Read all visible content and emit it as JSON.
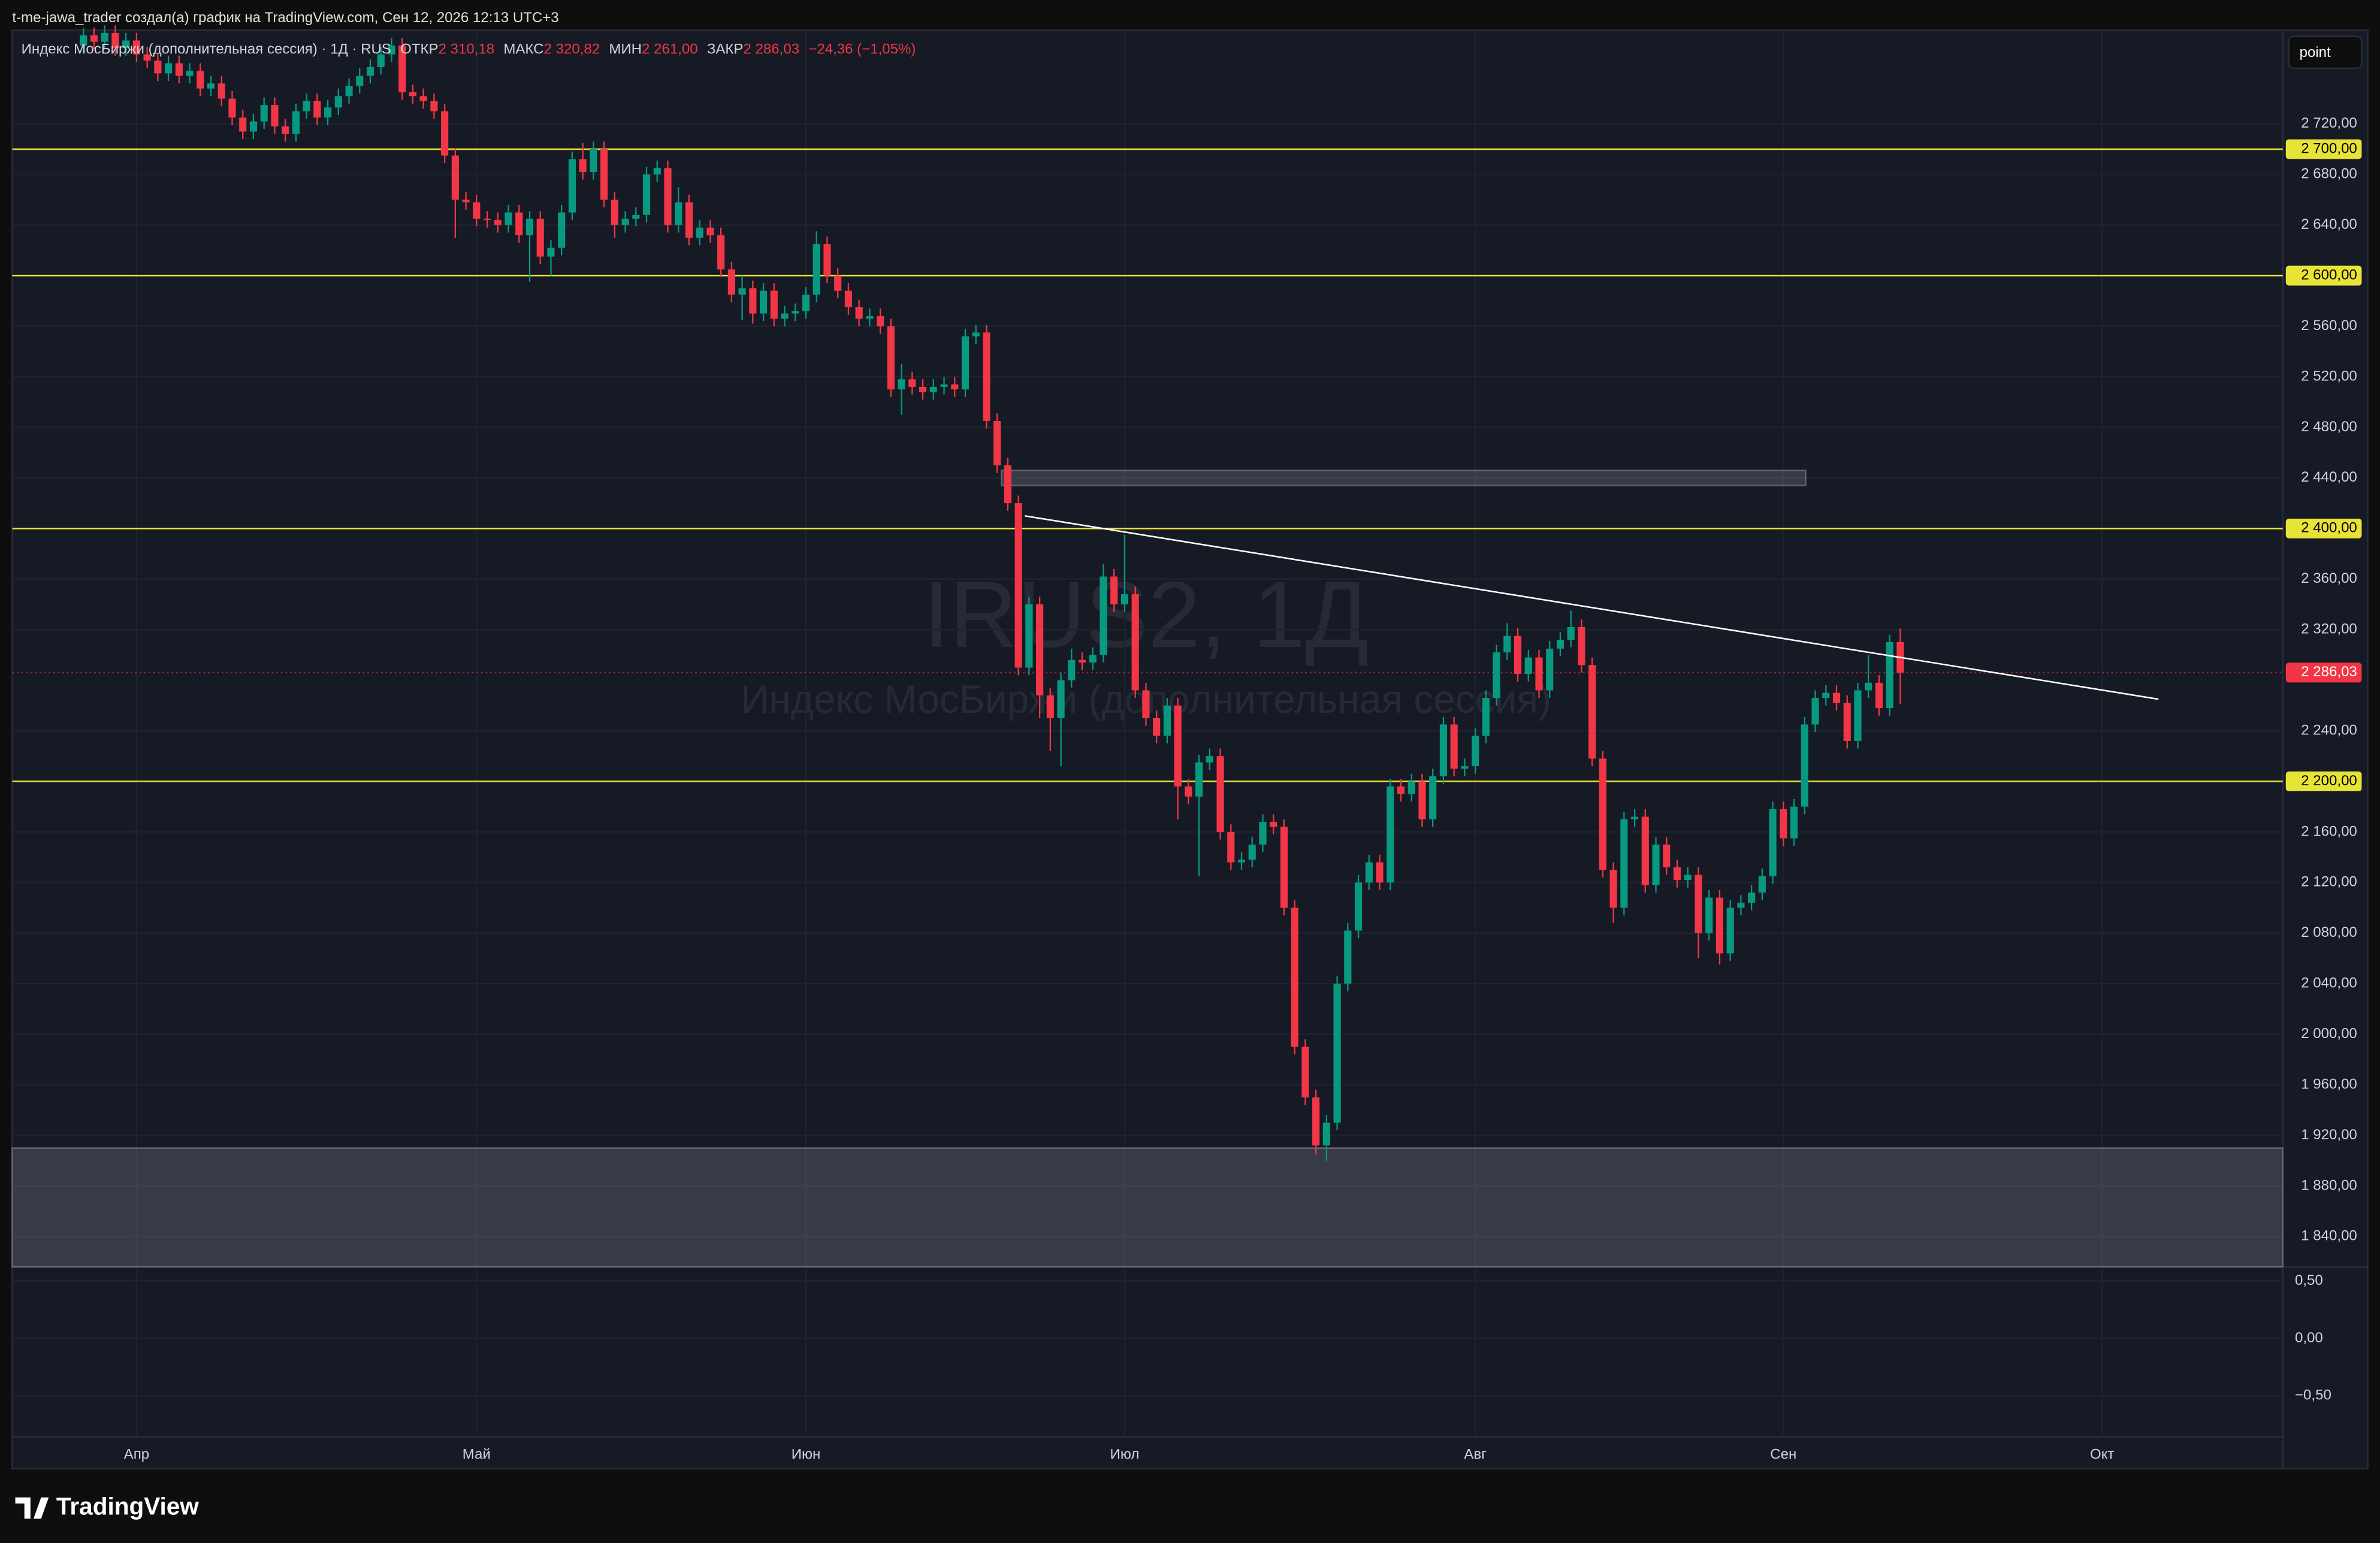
{
  "header": {
    "caption": "t-me-jawa_trader создал(а) график на TradingView.com, Сен 12, 2026 12:13 UTC+3"
  },
  "legend": {
    "symbol": "Индекс МосБиржи (дополнительная сессия) · 1Д · RUS",
    "open_label": "ОТКР",
    "open": "2 310,18",
    "high_label": "МАКС",
    "high": "2 320,82",
    "low_label": "МИН",
    "low": "2 261,00",
    "close_label": "ЗАКР",
    "close": "2 286,03",
    "change": "−24,36 (−1,05%)"
  },
  "watermark": {
    "symbol": "IRUS2, 1Д",
    "name": "Индекс МосБиржи (дополнительная сессия)"
  },
  "toolbar": {
    "button": "point"
  },
  "footer": {
    "logo": "TradingView"
  },
  "chart_data": [
    {
      "type": "candlestick",
      "categories": [
        null,
        null,
        null,
        null,
        null,
        null,
        null,
        null,
        null,
        null,
        null,
        null,
        null,
        null,
        null,
        null,
        null,
        null,
        null,
        null,
        null,
        null,
        null,
        null,
        null,
        null,
        null,
        null,
        null,
        null,
        null,
        null,
        null,
        null,
        null,
        null,
        null,
        null,
        null,
        null,
        null,
        null,
        null,
        null,
        null,
        null,
        null,
        null,
        null,
        null,
        null,
        null,
        null,
        null,
        null,
        null,
        null,
        null,
        null,
        null,
        null,
        null,
        null,
        null,
        null,
        null,
        null,
        null,
        null,
        null,
        null,
        null,
        null,
        null,
        null,
        null,
        null,
        null,
        null,
        null,
        null,
        null,
        null,
        null,
        null,
        null,
        null,
        null,
        null,
        null,
        null,
        null,
        null,
        null,
        null,
        null,
        null,
        null,
        null,
        null,
        null,
        null,
        null,
        null,
        null,
        null,
        null,
        null,
        null,
        null,
        null,
        null,
        null,
        null,
        null,
        null,
        null,
        null,
        null,
        null,
        null,
        null,
        null,
        null,
        null,
        null,
        null,
        null,
        null,
        null,
        null,
        null,
        null,
        null,
        null,
        null,
        null,
        null,
        null,
        null,
        null,
        null,
        null,
        null,
        null,
        null,
        null,
        null,
        null,
        null,
        null,
        null,
        null,
        null,
        null,
        null,
        null,
        null,
        null,
        null,
        null,
        null,
        null,
        null,
        null,
        null,
        null,
        null,
        null,
        null,
        null,
        null
      ],
      "open": [
        2782,
        2790,
        2785,
        2792,
        2780,
        2786,
        2775,
        2770,
        2760,
        2768,
        2758,
        2762,
        2748,
        2752,
        2740,
        2725,
        2714,
        2722,
        2735,
        2718,
        2712,
        2730,
        2738,
        2725,
        2733,
        2742,
        2750,
        2758,
        2765,
        2775,
        2782,
        2745,
        2742,
        2738,
        2730,
        2695,
        2660,
        2658,
        2645,
        2644,
        2640,
        2650,
        2632,
        2645,
        2615,
        2622,
        2650,
        2692,
        2682,
        2700,
        2660,
        2640,
        2645,
        2648,
        2680,
        2685,
        2640,
        2658,
        2630,
        2638,
        2632,
        2605,
        2585,
        2590,
        2570,
        2588,
        2566,
        2570,
        2572,
        2585,
        2625,
        2600,
        2588,
        2575,
        2566,
        2568,
        2560,
        2510,
        2518,
        2512,
        2508,
        2512,
        2514,
        2510,
        2552,
        2555,
        2485,
        2450,
        2420,
        2290,
        2340,
        2268,
        2250,
        2280,
        2296,
        2294,
        2300,
        2362,
        2340,
        2348,
        2272,
        2250,
        2236,
        2260,
        2196,
        2188,
        2215,
        2220,
        2160,
        2136,
        2138,
        2150,
        2168,
        2164,
        2100,
        1990,
        1950,
        1912,
        1930,
        2040,
        2082,
        2120,
        2136,
        2120,
        2196,
        2190,
        2200,
        2170,
        2204,
        2245,
        2210,
        2212,
        2236,
        2266,
        2302,
        2315,
        2285,
        2298,
        2272,
        2305,
        2312,
        2322,
        2292,
        2218,
        2130,
        2100,
        2170,
        2172,
        2118,
        2150,
        2132,
        2122,
        2126,
        2080,
        2108,
        2064,
        2100,
        2104,
        2112,
        2125,
        2178,
        2155,
        2180,
        2245,
        2266,
        2270,
        2262,
        2232,
        2272,
        2278,
        2258,
        2310.18
      ],
      "high": [
        2796,
        2796,
        2798,
        2798,
        2792,
        2792,
        2781,
        2776,
        2774,
        2774,
        2768,
        2768,
        2758,
        2758,
        2746,
        2731,
        2728,
        2741,
        2741,
        2724,
        2736,
        2744,
        2744,
        2739,
        2748,
        2756,
        2764,
        2771,
        2781,
        2788,
        2788,
        2751,
        2748,
        2744,
        2736,
        2701,
        2666,
        2664,
        2651,
        2650,
        2656,
        2656,
        2651,
        2651,
        2628,
        2656,
        2698,
        2705,
        2706,
        2706,
        2666,
        2651,
        2654,
        2686,
        2691,
        2691,
        2670,
        2664,
        2644,
        2644,
        2638,
        2611,
        2600,
        2596,
        2594,
        2594,
        2576,
        2578,
        2591,
        2635,
        2631,
        2606,
        2594,
        2581,
        2574,
        2574,
        2566,
        2530,
        2524,
        2518,
        2518,
        2520,
        2520,
        2558,
        2561,
        2561,
        2491,
        2456,
        2426,
        2346,
        2346,
        2274,
        2286,
        2305,
        2302,
        2306,
        2372,
        2368,
        2395,
        2354,
        2278,
        2256,
        2266,
        2266,
        2202,
        2221,
        2226,
        2226,
        2166,
        2144,
        2156,
        2174,
        2174,
        2170,
        2106,
        1996,
        1956,
        1936,
        2046,
        2088,
        2126,
        2142,
        2142,
        2202,
        2202,
        2206,
        2206,
        2210,
        2251,
        2251,
        2218,
        2242,
        2272,
        2308,
        2325,
        2321,
        2304,
        2304,
        2311,
        2318,
        2335,
        2328,
        2298,
        2224,
        2136,
        2176,
        2178,
        2178,
        2156,
        2156,
        2138,
        2132,
        2132,
        2114,
        2114,
        2106,
        2110,
        2118,
        2131,
        2184,
        2184,
        2186,
        2251,
        2272,
        2276,
        2276,
        2268,
        2278,
        2300,
        2284,
        2316,
        2320.82
      ],
      "low": [
        2776,
        2779,
        2779,
        2774,
        2774,
        2769,
        2764,
        2754,
        2754,
        2752,
        2752,
        2742,
        2742,
        2734,
        2719,
        2708,
        2708,
        2716,
        2712,
        2706,
        2706,
        2724,
        2719,
        2719,
        2727,
        2736,
        2744,
        2752,
        2759,
        2769,
        2739,
        2736,
        2732,
        2724,
        2689,
        2630,
        2652,
        2639,
        2638,
        2634,
        2634,
        2626,
        2595,
        2609,
        2600,
        2616,
        2644,
        2676,
        2676,
        2654,
        2630,
        2634,
        2639,
        2642,
        2674,
        2634,
        2634,
        2624,
        2624,
        2626,
        2599,
        2579,
        2565,
        2562,
        2564,
        2560,
        2560,
        2564,
        2566,
        2579,
        2594,
        2582,
        2569,
        2560,
        2560,
        2554,
        2504,
        2490,
        2506,
        2502,
        2502,
        2506,
        2504,
        2504,
        2546,
        2479,
        2444,
        2414,
        2284,
        2284,
        2250,
        2224,
        2212,
        2274,
        2288,
        2288,
        2294,
        2334,
        2334,
        2266,
        2244,
        2230,
        2230,
        2170,
        2182,
        2125,
        2209,
        2154,
        2130,
        2130,
        2132,
        2144,
        2158,
        2094,
        1984,
        1944,
        1905,
        1900,
        1924,
        2034,
        2076,
        2114,
        2114,
        2114,
        2184,
        2184,
        2164,
        2164,
        2198,
        2204,
        2204,
        2206,
        2230,
        2260,
        2296,
        2279,
        2279,
        2266,
        2266,
        2299,
        2306,
        2286,
        2212,
        2124,
        2088,
        2094,
        2164,
        2112,
        2112,
        2126,
        2116,
        2116,
        2060,
        2074,
        2055,
        2058,
        2094,
        2098,
        2106,
        2119,
        2149,
        2149,
        2174,
        2239,
        2260,
        2256,
        2226,
        2226,
        2266,
        2252,
        2252,
        2261
      ],
      "close": [
        2790,
        2785,
        2792,
        2780,
        2786,
        2775,
        2770,
        2760,
        2768,
        2758,
        2762,
        2748,
        2752,
        2740,
        2725,
        2714,
        2722,
        2735,
        2718,
        2712,
        2730,
        2738,
        2725,
        2733,
        2742,
        2750,
        2758,
        2765,
        2775,
        2782,
        2745,
        2742,
        2738,
        2730,
        2695,
        2660,
        2658,
        2645,
        2644,
        2640,
        2650,
        2632,
        2645,
        2615,
        2622,
        2650,
        2692,
        2682,
        2700,
        2660,
        2640,
        2645,
        2648,
        2680,
        2685,
        2640,
        2658,
        2630,
        2638,
        2632,
        2605,
        2585,
        2590,
        2570,
        2588,
        2566,
        2570,
        2572,
        2585,
        2625,
        2600,
        2588,
        2575,
        2566,
        2568,
        2560,
        2510,
        2518,
        2512,
        2508,
        2512,
        2514,
        2510,
        2552,
        2555,
        2485,
        2450,
        2420,
        2290,
        2340,
        2268,
        2250,
        2280,
        2296,
        2294,
        2300,
        2362,
        2340,
        2348,
        2272,
        2250,
        2236,
        2260,
        2196,
        2188,
        2215,
        2220,
        2160,
        2136,
        2138,
        2150,
        2168,
        2164,
        2100,
        1990,
        1950,
        1912,
        1930,
        2040,
        2082,
        2120,
        2136,
        2120,
        2196,
        2190,
        2200,
        2170,
        2204,
        2245,
        2210,
        2212,
        2236,
        2266,
        2302,
        2315,
        2285,
        2298,
        2272,
        2305,
        2312,
        2322,
        2292,
        2218,
        2130,
        2100,
        2170,
        2172,
        2118,
        2150,
        2132,
        2122,
        2126,
        2080,
        2108,
        2064,
        2100,
        2104,
        2112,
        2125,
        2178,
        2155,
        2180,
        2245,
        2266,
        2270,
        2262,
        2232,
        2272,
        2278,
        2258,
        2310.18,
        2286.03
      ],
      "up_color": "#089981",
      "down_color": "#f23645",
      "xlim": [
        -6.7,
        207
      ],
      "xticks": [
        {
          "value": 5,
          "label": "Апр"
        },
        {
          "value": 37,
          "label": "Май"
        },
        {
          "value": 68,
          "label": "Июн"
        },
        {
          "value": 98,
          "label": "Июл"
        },
        {
          "value": 131,
          "label": "Авг"
        },
        {
          "value": 160,
          "label": "Сен"
        },
        {
          "value": 190,
          "label": "Окт"
        }
      ],
      "ylim": [
        1816,
        2794
      ],
      "yticks": [
        {
          "value": 2720,
          "label": "2 720,00"
        },
        {
          "value": 2680,
          "label": "2 680,00"
        },
        {
          "value": 2640,
          "label": "2 640,00"
        },
        {
          "value": 2560,
          "label": "2 560,00"
        },
        {
          "value": 2520,
          "label": "2 520,00"
        },
        {
          "value": 2480,
          "label": "2 480,00"
        },
        {
          "value": 2440,
          "label": "2 440,00"
        },
        {
          "value": 2360,
          "label": "2 360,00"
        },
        {
          "value": 2320,
          "label": "2 320,00"
        },
        {
          "value": 2240,
          "label": "2 240,00"
        },
        {
          "value": 2160,
          "label": "2 160,00"
        },
        {
          "value": 2120,
          "label": "2 120,00"
        },
        {
          "value": 2080,
          "label": "2 080,00"
        },
        {
          "value": 2040,
          "label": "2 040,00"
        },
        {
          "value": 2000,
          "label": "2 000,00"
        },
        {
          "value": 1960,
          "label": "1 960,00"
        },
        {
          "value": 1920,
          "label": "1 920,00"
        },
        {
          "value": 1880,
          "label": "1 880,00"
        },
        {
          "value": 1840,
          "label": "1 840,00"
        }
      ],
      "grid": true,
      "level_color": "#e8e337",
      "levels": [
        {
          "value": 2700,
          "label": "2 700,00"
        },
        {
          "value": 2600,
          "label": "2 600,00"
        },
        {
          "value": 2400,
          "label": "2 400,00"
        },
        {
          "value": 2200,
          "label": "2 200,00"
        }
      ],
      "last_price": {
        "value": 2286.03,
        "label": "2 286,03"
      },
      "zones": [
        {
          "x": [
            86.4,
            162.1
          ],
          "y": [
            2434,
            2446
          ]
        },
        {
          "x": [
            -6.7,
            207
          ],
          "y": [
            1816,
            1910
          ]
        }
      ],
      "trendline": {
        "x": [
          88.6,
          195.3
        ],
        "y": [
          2410,
          2265
        ]
      }
    },
    {
      "type": "pane",
      "ylim": [
        -0.856,
        0.622
      ],
      "yticks": [
        {
          "value": 0.5,
          "label": "0,50"
        },
        {
          "value": 0,
          "label": "0,00"
        },
        {
          "value": -0.5,
          "label": "−0,50"
        }
      ]
    }
  ]
}
